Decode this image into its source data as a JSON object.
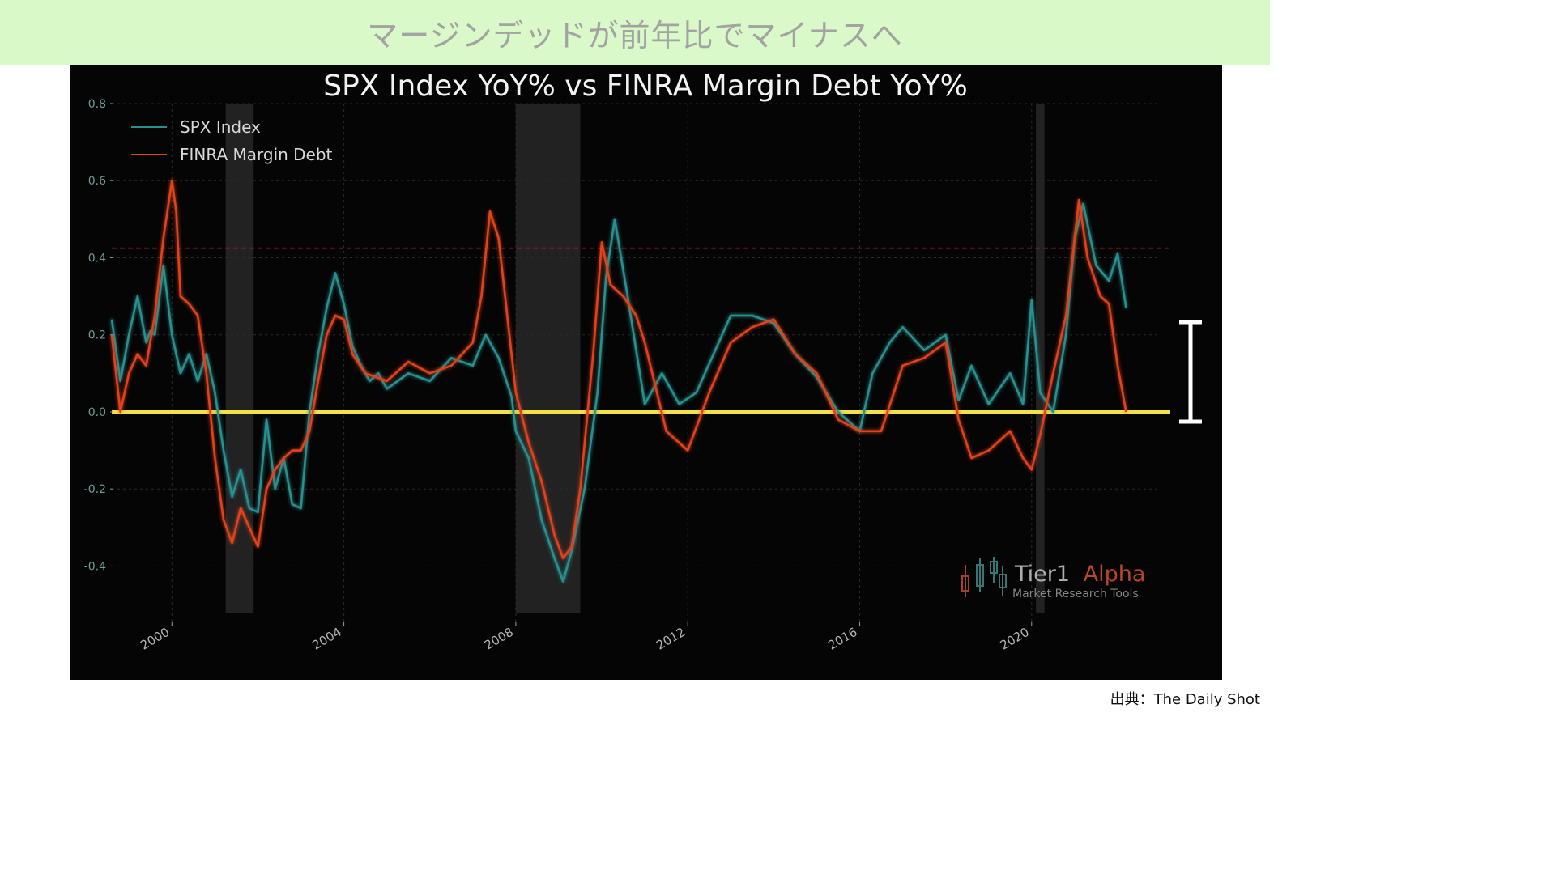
{
  "banner": {
    "title": "マージンデッドが前年比でマイナスへ"
  },
  "source": "出典：The Daily Shot",
  "watermark": {
    "brand_main": "Tier1",
    "brand_accent": "Alpha",
    "tagline": "Market  Research Tools"
  },
  "colors": {
    "spx": "#2a8f8f",
    "margin_debt": "#e0431f",
    "zero_line": "#f2e24a",
    "threshold_line": "#d42020",
    "shade": "#3a3a3a",
    "banner_bg": "#d9f9c9"
  },
  "chart_data": {
    "type": "line",
    "title": "SPX Index YoY% vs FINRA Margin Debt YoY%",
    "xlabel": "",
    "ylabel": "",
    "xlim": [
      1998.6,
      2023.0
    ],
    "ylim": [
      -0.46,
      0.8
    ],
    "yticks": [
      "0.8",
      "0.6",
      "0.4",
      "0.2",
      "0.0",
      "-0.2",
      "-0.4"
    ],
    "yticks_values": [
      0.8,
      0.6,
      0.4,
      0.2,
      0.0,
      -0.2,
      -0.4
    ],
    "xticks": [
      "2000",
      "2004",
      "2008",
      "2012",
      "2016",
      "2020"
    ],
    "xticks_values": [
      2000,
      2004,
      2008,
      2012,
      2016,
      2020
    ],
    "grid": true,
    "legend_position": "top-left",
    "shaded_periods": [
      [
        2001.25,
        2001.9
      ],
      [
        2008.0,
        2009.5
      ],
      [
        2020.1,
        2020.3
      ]
    ],
    "reference_lines": [
      {
        "y": 0.0,
        "style": "solid",
        "color": "#f2e24a"
      },
      {
        "y": 0.425,
        "style": "dashed",
        "color": "#d42020"
      }
    ],
    "series": [
      {
        "name": "SPX Index",
        "x": [
          1998.6,
          1998.8,
          1999.0,
          1999.2,
          1999.4,
          1999.5,
          1999.6,
          1999.8,
          2000.0,
          2000.2,
          2000.4,
          2000.6,
          2000.8,
          2001.0,
          2001.2,
          2001.4,
          2001.6,
          2001.8,
          2002.0,
          2002.2,
          2002.4,
          2002.6,
          2002.8,
          2003.0,
          2003.2,
          2003.4,
          2003.6,
          2003.8,
          2004.0,
          2004.2,
          2004.4,
          2004.6,
          2004.8,
          2005.0,
          2005.5,
          2006.0,
          2006.5,
          2007.0,
          2007.3,
          2007.6,
          2007.9,
          2008.0,
          2008.3,
          2008.6,
          2008.9,
          2009.1,
          2009.3,
          2009.6,
          2009.9,
          2010.1,
          2010.3,
          2010.6,
          2011.0,
          2011.4,
          2011.8,
          2012.2,
          2012.6,
          2013.0,
          2013.5,
          2014.0,
          2014.5,
          2015.0,
          2015.5,
          2016.0,
          2016.3,
          2016.7,
          2017.0,
          2017.5,
          2018.0,
          2018.3,
          2018.6,
          2019.0,
          2019.5,
          2019.8,
          2020.0,
          2020.2,
          2020.5,
          2020.8,
          2021.0,
          2021.2,
          2021.5,
          2021.8,
          2022.0,
          2022.2
        ],
        "y": [
          0.24,
          0.08,
          0.2,
          0.3,
          0.18,
          0.21,
          0.2,
          0.38,
          0.2,
          0.1,
          0.15,
          0.08,
          0.15,
          0.05,
          -0.1,
          -0.22,
          -0.15,
          -0.25,
          -0.26,
          -0.02,
          -0.2,
          -0.12,
          -0.24,
          -0.25,
          0.0,
          0.15,
          0.27,
          0.36,
          0.28,
          0.17,
          0.12,
          0.08,
          0.1,
          0.06,
          0.1,
          0.08,
          0.14,
          0.12,
          0.2,
          0.14,
          0.04,
          -0.05,
          -0.12,
          -0.28,
          -0.38,
          -0.44,
          -0.36,
          -0.2,
          0.05,
          0.35,
          0.5,
          0.3,
          0.02,
          0.1,
          0.02,
          0.05,
          0.15,
          0.25,
          0.25,
          0.23,
          0.15,
          0.09,
          0.0,
          -0.05,
          0.1,
          0.18,
          0.22,
          0.16,
          0.2,
          0.03,
          0.12,
          0.02,
          0.1,
          0.02,
          0.29,
          0.05,
          0.0,
          0.2,
          0.45,
          0.54,
          0.38,
          0.34,
          0.41,
          0.27
        ]
      },
      {
        "name": "FINRA Margin Debt",
        "x": [
          1998.6,
          1998.8,
          1999.0,
          1999.2,
          1999.4,
          1999.6,
          1999.8,
          2000.0,
          2000.1,
          2000.2,
          2000.4,
          2000.6,
          2000.8,
          2001.0,
          2001.2,
          2001.4,
          2001.6,
          2001.8,
          2002.0,
          2002.2,
          2002.4,
          2002.6,
          2002.8,
          2003.0,
          2003.2,
          2003.4,
          2003.6,
          2003.8,
          2004.0,
          2004.2,
          2004.5,
          2005.0,
          2005.5,
          2006.0,
          2006.5,
          2007.0,
          2007.2,
          2007.4,
          2007.6,
          2007.9,
          2008.0,
          2008.3,
          2008.6,
          2008.9,
          2009.1,
          2009.3,
          2009.5,
          2009.8,
          2010.0,
          2010.2,
          2010.5,
          2010.8,
          2011.0,
          2011.5,
          2012.0,
          2012.5,
          2013.0,
          2013.5,
          2014.0,
          2014.5,
          2015.0,
          2015.5,
          2016.0,
          2016.5,
          2017.0,
          2017.5,
          2018.0,
          2018.3,
          2018.6,
          2019.0,
          2019.5,
          2019.8,
          2020.0,
          2020.2,
          2020.5,
          2020.8,
          2021.0,
          2021.1,
          2021.3,
          2021.6,
          2021.8,
          2022.0,
          2022.2
        ],
        "y": [
          0.2,
          0.0,
          0.1,
          0.15,
          0.12,
          0.25,
          0.45,
          0.6,
          0.52,
          0.3,
          0.28,
          0.25,
          0.1,
          -0.12,
          -0.28,
          -0.34,
          -0.25,
          -0.3,
          -0.35,
          -0.2,
          -0.15,
          -0.12,
          -0.1,
          -0.1,
          -0.05,
          0.08,
          0.2,
          0.25,
          0.24,
          0.15,
          0.1,
          0.08,
          0.13,
          0.1,
          0.12,
          0.18,
          0.3,
          0.52,
          0.45,
          0.15,
          0.05,
          -0.08,
          -0.18,
          -0.32,
          -0.38,
          -0.35,
          -0.2,
          0.15,
          0.44,
          0.33,
          0.3,
          0.25,
          0.18,
          -0.05,
          -0.1,
          0.05,
          0.18,
          0.22,
          0.24,
          0.15,
          0.1,
          -0.02,
          -0.05,
          -0.05,
          0.12,
          0.14,
          0.18,
          -0.02,
          -0.12,
          -0.1,
          -0.05,
          -0.12,
          -0.15,
          -0.06,
          0.1,
          0.25,
          0.45,
          0.55,
          0.4,
          0.3,
          0.28,
          0.12,
          0.0
        ]
      }
    ]
  }
}
